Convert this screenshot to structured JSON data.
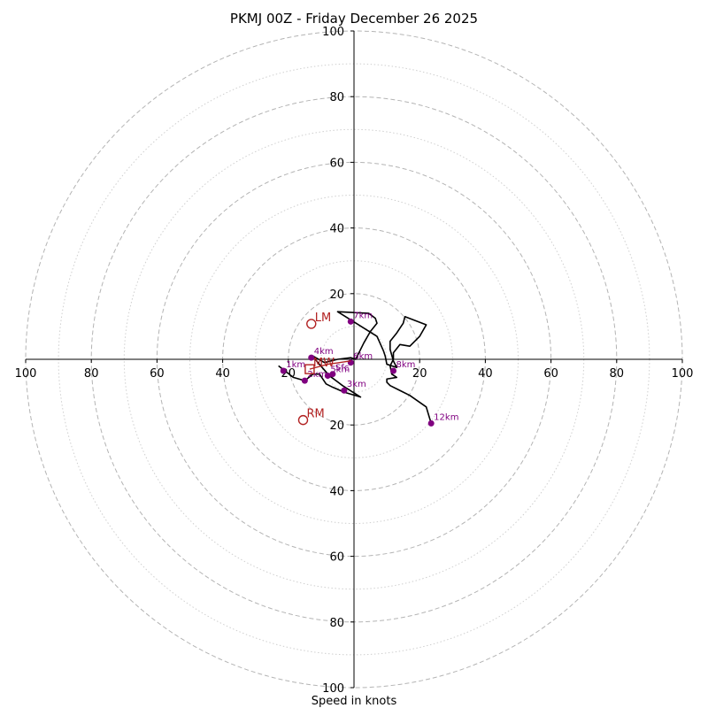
{
  "chart_data": {
    "type": "hodograph",
    "title": "PKMJ 00Z - Friday December 26 2025",
    "xlabel": "Speed in knots",
    "rings": {
      "major": [
        20,
        40,
        60,
        80,
        100
      ],
      "minor": [
        10,
        30,
        50,
        70,
        90
      ]
    },
    "axis_ticks": {
      "left": [
        "100",
        "80",
        "60",
        "40",
        "20"
      ],
      "right": [
        "20",
        "40",
        "60",
        "80",
        "100"
      ],
      "top": [
        "20",
        "40",
        "60",
        "80",
        "100"
      ],
      "bottom": [
        "20",
        "40",
        "60",
        "80",
        "100"
      ]
    },
    "trace": [
      [
        -23.0,
        -2.0
      ],
      [
        -18.5,
        -5.5
      ],
      [
        -15,
        -6.5
      ],
      [
        -12.5,
        -4.5
      ],
      [
        -10.5,
        -4.5
      ],
      [
        -8.5,
        -7.5
      ],
      [
        -6.5,
        -8.5
      ],
      [
        -3,
        -10
      ],
      [
        2,
        -11.5
      ],
      [
        -3.5,
        -8
      ],
      [
        -7.5,
        -5
      ],
      [
        -11,
        -1
      ],
      [
        -12.5,
        1
      ],
      [
        -9,
        -1
      ],
      [
        -5,
        0
      ],
      [
        -1,
        0.5
      ],
      [
        0.5,
        0
      ],
      [
        1.5,
        2
      ],
      [
        3,
        5
      ],
      [
        5,
        8.5
      ],
      [
        7,
        11
      ],
      [
        6.5,
        12.5
      ],
      [
        4.5,
        14
      ],
      [
        -5,
        14.5
      ],
      [
        -1,
        12
      ],
      [
        7,
        7
      ],
      [
        9,
        2.5
      ],
      [
        9.5,
        1
      ],
      [
        10,
        -1.5
      ],
      [
        13,
        -2.5
      ],
      [
        12,
        -0.5
      ],
      [
        11,
        3
      ],
      [
        11,
        5.5
      ],
      [
        13,
        8
      ],
      [
        15,
        11
      ],
      [
        15.5,
        13
      ],
      [
        22,
        10.5
      ],
      [
        20,
        7
      ],
      [
        17,
        4
      ],
      [
        14,
        4.5
      ],
      [
        12,
        2
      ],
      [
        12,
        0
      ],
      [
        11,
        -2
      ],
      [
        11.5,
        -4.5
      ],
      [
        13,
        -5.5
      ],
      [
        10,
        -6
      ],
      [
        10,
        -7
      ],
      [
        11,
        -8
      ],
      [
        14,
        -9.5
      ],
      [
        17,
        -11
      ],
      [
        22,
        -14.5
      ],
      [
        23.5,
        -19.5
      ]
    ],
    "height_markers": [
      {
        "label": "Sfc",
        "u": -6.5,
        "v": -4.5
      },
      {
        "label": "1km",
        "u": -21.5,
        "v": -3.5
      },
      {
        "label": "2km",
        "u": -15.0,
        "v": -6.5
      },
      {
        "label": "3km",
        "u": -3.0,
        "v": -9.5
      },
      {
        "label": "4km",
        "u": -13.0,
        "v": 0.5
      },
      {
        "label": "5km",
        "u": -8.0,
        "v": -5.0
      },
      {
        "label": "6km",
        "u": -1.0,
        "v": -1.0
      },
      {
        "label": "7km",
        "u": -1.0,
        "v": 11.5
      },
      {
        "label": "8km",
        "u": 12.0,
        "v": -3.5
      },
      {
        "label": "12km",
        "u": 23.5,
        "v": -19.5
      }
    ],
    "mean_wind_trace": [
      [
        -13.5,
        -3.0
      ],
      [
        -8.0,
        -1.5
      ],
      [
        -1.0,
        -0.5
      ]
    ],
    "motion_markers": [
      {
        "label": "LM",
        "u": -13.0,
        "v": 10.8
      },
      {
        "label": "MW",
        "u": -13.5,
        "v": -3.0
      },
      {
        "label": "RM",
        "u": -15.5,
        "v": -18.5
      }
    ],
    "colors": {
      "trace": "#000000",
      "height_marker": "#800080",
      "motion": "#b22222",
      "grid": "#b4b4b4"
    }
  }
}
